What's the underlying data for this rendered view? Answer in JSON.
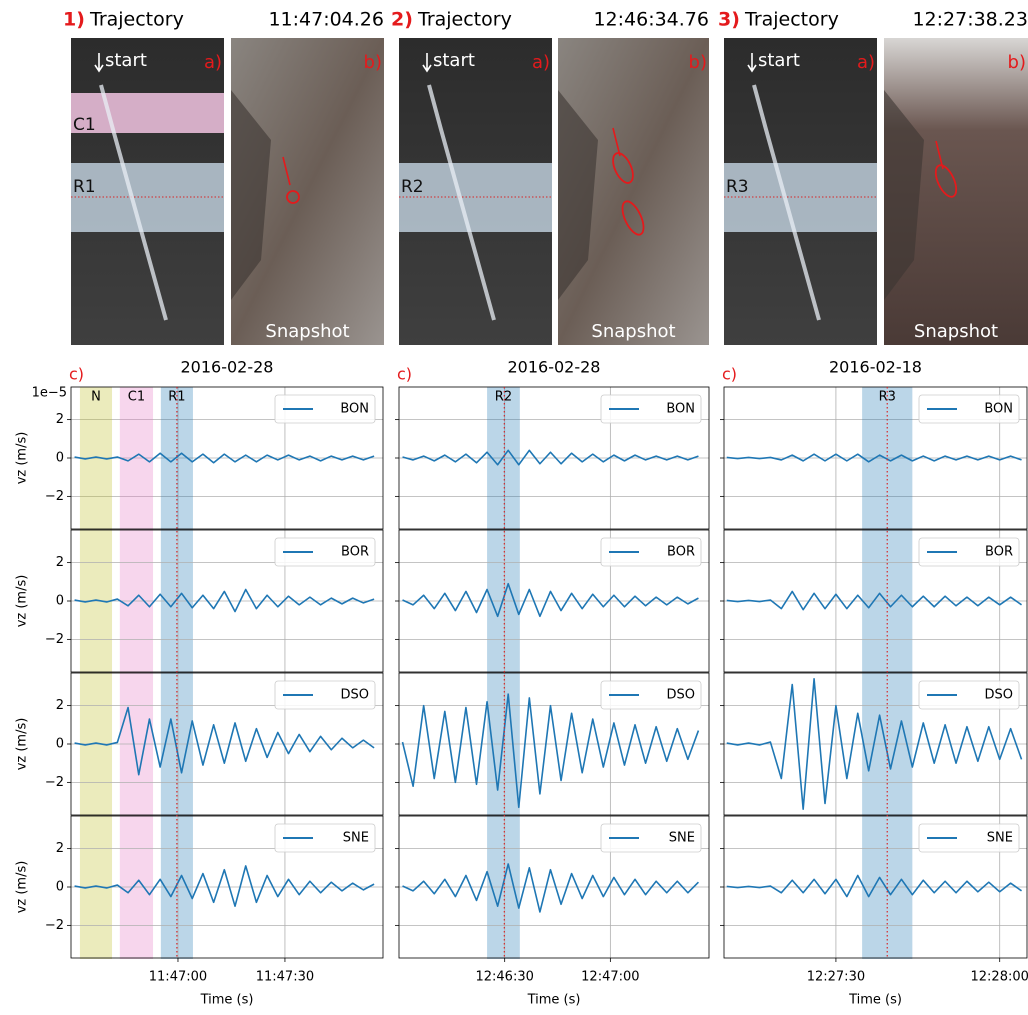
{
  "chart_data": [
    {
      "type": "line",
      "header": {
        "number": "1)",
        "label": "Trajectory",
        "time": "11:47:04.26"
      },
      "photo_labels": {
        "start": "start",
        "a": "a)",
        "b": "b)",
        "snapshot": "Snapshot"
      },
      "photo_bands": [
        {
          "label": "C1",
          "color": "#e377c2"
        },
        {
          "label": "R1",
          "color": "#1f77b4"
        }
      ],
      "panel_label": "c)",
      "title": "2016-02-28",
      "xlabel": "Time (s)",
      "ylabel": "vz (m/s)",
      "y_offset_label": "1e−5",
      "x": [
        42391,
        42394,
        42397,
        42400,
        42403,
        42406,
        42409,
        42412,
        42415,
        42418,
        42421,
        42424,
        42427,
        42430,
        42433,
        42436,
        42439,
        42442,
        42445,
        42448,
        42451,
        42454,
        42457,
        42460,
        42463,
        42466,
        42469,
        42472,
        42475
      ],
      "xlim": [
        42390,
        42477.5
      ],
      "xticks": [
        {
          "value": 42420,
          "label": "11:47:00"
        },
        {
          "value": 42450,
          "label": "11:47:30"
        }
      ],
      "ylim": [
        -3.7,
        3.7
      ],
      "yticks": [
        {
          "value": -2,
          "label": "−2"
        },
        0,
        2
      ],
      "grid": true,
      "spans": [
        {
          "label": "N",
          "start": 42392.5,
          "end": 42401.5,
          "color": "#bcbd22"
        },
        {
          "label": "C1",
          "start": 42403.7,
          "end": 42413,
          "color": "#e377c2"
        },
        {
          "label": "R1",
          "start": 42415.2,
          "end": 42424.2,
          "color": "#1f77b4"
        }
      ],
      "marker_line": 42419.7,
      "series": [
        {
          "name": "BON",
          "color": "#1f77b4",
          "values": [
            0.05,
            -0.05,
            0.05,
            -0.05,
            0.05,
            -0.15,
            0.2,
            -0.2,
            0.25,
            -0.2,
            0.25,
            -0.2,
            0.2,
            -0.25,
            0.2,
            -0.2,
            0.15,
            -0.2,
            0.15,
            -0.1,
            0.15,
            -0.1,
            0.1,
            -0.15,
            0.1,
            -0.1,
            0.1,
            -0.1,
            0.1
          ]
        },
        {
          "name": "BOR",
          "color": "#1f77b4",
          "values": [
            0.05,
            -0.05,
            0.05,
            -0.05,
            0.1,
            -0.25,
            0.3,
            -0.3,
            0.35,
            -0.3,
            0.4,
            -0.35,
            0.3,
            -0.4,
            0.5,
            -0.55,
            0.6,
            -0.4,
            0.3,
            -0.3,
            0.25,
            -0.2,
            0.2,
            -0.2,
            0.15,
            -0.15,
            0.15,
            -0.1,
            0.1
          ]
        },
        {
          "name": "DSO",
          "color": "#1f77b4",
          "values": [
            0.05,
            -0.05,
            0.05,
            -0.05,
            0.08,
            1.9,
            -1.6,
            1.3,
            -1.2,
            1.3,
            -1.5,
            1.2,
            -1.1,
            1.0,
            -1.0,
            1.1,
            -0.9,
            0.8,
            -0.7,
            0.6,
            -0.5,
            0.5,
            -0.4,
            0.4,
            -0.3,
            0.3,
            -0.2,
            0.2,
            -0.2
          ]
        },
        {
          "name": "SNE",
          "color": "#1f77b4",
          "values": [
            0.05,
            -0.05,
            0.05,
            -0.05,
            0.1,
            -0.3,
            0.35,
            -0.4,
            0.4,
            -0.5,
            0.6,
            -0.6,
            0.7,
            -0.8,
            0.9,
            -1.0,
            1.1,
            -0.8,
            0.6,
            -0.5,
            0.4,
            -0.4,
            0.3,
            -0.3,
            0.25,
            -0.2,
            0.2,
            -0.15,
            0.15
          ]
        }
      ]
    },
    {
      "type": "line",
      "header": {
        "number": "2)",
        "label": "Trajectory",
        "time": "12:46:34.76"
      },
      "photo_labels": {
        "start": "start",
        "a": "a)",
        "b": "b)",
        "snapshot": "Snapshot"
      },
      "photo_bands": [
        {
          "label": "R2",
          "color": "#1f77b4"
        }
      ],
      "panel_label": "c)",
      "title": "2016-02-28",
      "xlabel": "Time (s)",
      "x": [
        45961,
        45964,
        45967,
        45970,
        45973,
        45976,
        45979,
        45982,
        45985,
        45988,
        45991,
        45994,
        45997,
        46000,
        46003,
        46006,
        46009,
        46012,
        46015,
        46018,
        46021,
        46024,
        46027,
        46030,
        46033,
        46036,
        46039,
        46042,
        46045
      ],
      "xlim": [
        45960,
        46048
      ],
      "xticks": [
        {
          "value": 45990,
          "label": "12:46:30"
        },
        {
          "value": 46020,
          "label": "12:47:00"
        }
      ],
      "ylim": [
        -3.7,
        3.7
      ],
      "yticks": [
        -2,
        0,
        2
      ],
      "grid": true,
      "spans": [
        {
          "label": "R2",
          "start": 45985,
          "end": 45994.3,
          "color": "#1f77b4"
        }
      ],
      "marker_line": 45989.9,
      "series": [
        {
          "name": "BON",
          "color": "#1f77b4",
          "values": [
            0.05,
            -0.1,
            0.1,
            -0.15,
            0.15,
            -0.2,
            0.2,
            -0.25,
            0.3,
            -0.35,
            0.4,
            -0.35,
            0.4,
            -0.3,
            0.3,
            -0.3,
            0.25,
            -0.2,
            0.2,
            -0.2,
            0.15,
            -0.15,
            0.15,
            -0.1,
            0.1,
            -0.1,
            0.1,
            -0.1,
            0.1
          ]
        },
        {
          "name": "BOR",
          "color": "#1f77b4",
          "values": [
            0.05,
            -0.2,
            0.3,
            -0.4,
            0.4,
            -0.5,
            0.5,
            -0.6,
            0.6,
            -0.8,
            0.9,
            -0.7,
            0.6,
            -0.8,
            0.5,
            -0.5,
            0.4,
            -0.4,
            0.35,
            -0.3,
            0.3,
            -0.3,
            0.25,
            -0.25,
            0.2,
            -0.2,
            0.2,
            -0.15,
            0.15
          ]
        },
        {
          "name": "DSO",
          "color": "#1f77b4",
          "values": [
            0.1,
            -2.2,
            2.0,
            -1.8,
            1.7,
            -2.0,
            1.9,
            -2.1,
            2.2,
            -2.4,
            2.6,
            -3.3,
            2.4,
            -2.6,
            2.0,
            -1.9,
            1.6,
            -1.5,
            1.3,
            -1.2,
            1.1,
            -1.1,
            1.0,
            -1.0,
            0.9,
            -0.9,
            0.8,
            -0.8,
            0.7
          ]
        },
        {
          "name": "SNE",
          "color": "#1f77b4",
          "values": [
            0.05,
            -0.2,
            0.3,
            -0.35,
            0.4,
            -0.5,
            0.6,
            -0.7,
            0.8,
            -1.0,
            1.2,
            -1.1,
            1.0,
            -1.3,
            0.9,
            -0.9,
            0.7,
            -0.6,
            0.6,
            -0.5,
            0.5,
            -0.4,
            0.4,
            -0.4,
            0.3,
            -0.3,
            0.3,
            -0.3,
            0.25
          ]
        }
      ]
    },
    {
      "type": "line",
      "header": {
        "number": "3)",
        "label": "Trajectory",
        "time": "12:27:38.23"
      },
      "photo_labels": {
        "start": "start",
        "a": "a)",
        "b": "b)",
        "snapshot": "Snapshot"
      },
      "photo_bands": [
        {
          "label": "R3",
          "color": "#1f77b4"
        }
      ],
      "panel_label": "c)",
      "title": "2016-02-18",
      "xlabel": "Time (s)",
      "x": [
        44830,
        44832,
        44834,
        44836,
        44838,
        44840,
        44842,
        44844,
        44846,
        44848,
        44850,
        44852,
        44854,
        44856,
        44858,
        44860,
        44862,
        44864,
        44866,
        44868,
        44870,
        44872,
        44874,
        44876,
        44878,
        44880,
        44882,
        44884
      ],
      "xlim": [
        44829.5,
        44885
      ],
      "xticks": [
        {
          "value": 44850,
          "label": "12:27:30"
        },
        {
          "value": 44880,
          "label": "12:28:00"
        }
      ],
      "ylim": [
        -3.7,
        3.7
      ],
      "yticks": [
        -2,
        0,
        2
      ],
      "grid": true,
      "spans": [
        {
          "label": "R3",
          "start": 44854.8,
          "end": 44864,
          "color": "#1f77b4"
        }
      ],
      "marker_line": 44859.4,
      "series": [
        {
          "name": "BON",
          "color": "#1f77b4",
          "values": [
            0.03,
            -0.03,
            0.03,
            -0.03,
            0.03,
            -0.1,
            0.15,
            -0.15,
            0.2,
            -0.15,
            0.2,
            -0.15,
            0.2,
            -0.2,
            0.15,
            -0.15,
            0.15,
            -0.15,
            0.1,
            -0.15,
            0.1,
            -0.1,
            0.1,
            -0.1,
            0.1,
            -0.1,
            0.1,
            -0.1
          ]
        },
        {
          "name": "BOR",
          "color": "#1f77b4",
          "values": [
            0.03,
            -0.03,
            0.03,
            -0.03,
            0.05,
            -0.4,
            0.5,
            -0.45,
            0.4,
            -0.4,
            0.35,
            -0.4,
            0.3,
            -0.35,
            0.4,
            -0.3,
            0.3,
            -0.3,
            0.25,
            -0.3,
            0.25,
            -0.25,
            0.2,
            -0.25,
            0.2,
            -0.2,
            0.2,
            -0.2
          ]
        },
        {
          "name": "DSO",
          "color": "#1f77b4",
          "values": [
            0.05,
            -0.05,
            0.05,
            -0.05,
            0.1,
            -1.8,
            3.1,
            -3.4,
            3.4,
            -3.1,
            2.0,
            -1.8,
            1.6,
            -1.4,
            1.5,
            -1.3,
            1.2,
            -1.2,
            1.1,
            -1.0,
            1.0,
            -1.0,
            0.9,
            -0.9,
            0.9,
            -0.8,
            0.8,
            -0.8
          ]
        },
        {
          "name": "SNE",
          "color": "#1f77b4",
          "values": [
            0.03,
            -0.03,
            0.03,
            -0.03,
            0.05,
            -0.3,
            0.35,
            -0.3,
            0.4,
            -0.35,
            0.4,
            -0.5,
            0.6,
            -0.5,
            0.5,
            -0.4,
            0.4,
            -0.4,
            0.35,
            -0.3,
            0.3,
            -0.3,
            0.3,
            -0.25,
            0.25,
            -0.25,
            0.2,
            -0.2
          ]
        }
      ]
    }
  ]
}
